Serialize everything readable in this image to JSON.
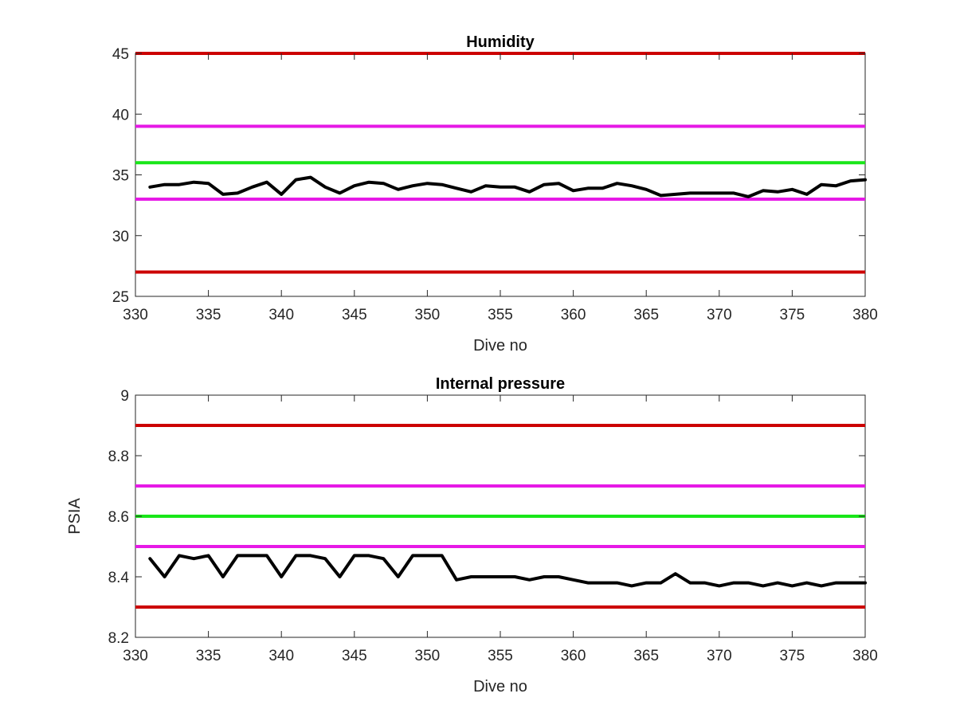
{
  "chart_data": [
    {
      "type": "line",
      "title": "Humidity",
      "xlabel": "Dive no",
      "ylabel": "",
      "xlim": [
        330,
        380
      ],
      "ylim": [
        25,
        45
      ],
      "xticks": [
        330,
        335,
        340,
        345,
        350,
        355,
        360,
        365,
        370,
        375,
        380
      ],
      "yticks": [
        25,
        30,
        35,
        40,
        45
      ],
      "grid": false,
      "legend": "none",
      "thresholds": [
        {
          "value": 45,
          "color": "#cc0000"
        },
        {
          "value": 39,
          "color": "#e619e6"
        },
        {
          "value": 36,
          "color": "#19e619"
        },
        {
          "value": 33,
          "color": "#e619e6"
        },
        {
          "value": 27,
          "color": "#cc0000"
        }
      ],
      "series": [
        {
          "color": "#000000",
          "x": [
            331,
            332,
            333,
            334,
            335,
            336,
            337,
            338,
            339,
            340,
            341,
            342,
            343,
            344,
            345,
            346,
            347,
            348,
            349,
            350,
            351,
            352,
            353,
            354,
            355,
            356,
            357,
            358,
            359,
            360,
            361,
            362,
            363,
            364,
            365,
            366,
            367,
            368,
            369,
            370,
            371,
            372,
            373,
            374,
            375,
            376,
            377,
            378,
            379,
            380
          ],
          "values": [
            34.0,
            34.2,
            34.2,
            34.4,
            34.3,
            33.4,
            33.5,
            34.0,
            34.4,
            33.4,
            34.6,
            34.8,
            34.0,
            33.5,
            34.1,
            34.4,
            34.3,
            33.8,
            34.1,
            34.3,
            34.2,
            33.9,
            33.6,
            34.1,
            34.0,
            34.0,
            33.6,
            34.2,
            34.3,
            33.7,
            33.9,
            33.9,
            34.3,
            34.1,
            33.8,
            33.3,
            33.4,
            33.5,
            33.5,
            33.5,
            33.5,
            33.2,
            33.7,
            33.6,
            33.8,
            33.4,
            34.2,
            34.1,
            34.5,
            34.6
          ]
        }
      ]
    },
    {
      "type": "line",
      "title": "Internal pressure",
      "xlabel": "Dive no",
      "ylabel": "PSIA",
      "xlim": [
        330,
        380
      ],
      "ylim": [
        8.2,
        9
      ],
      "xticks": [
        330,
        335,
        340,
        345,
        350,
        355,
        360,
        365,
        370,
        375,
        380
      ],
      "yticks": [
        8.2,
        8.4,
        8.6,
        8.8,
        9
      ],
      "grid": false,
      "legend": "none",
      "thresholds": [
        {
          "value": 8.9,
          "color": "#cc0000"
        },
        {
          "value": 8.7,
          "color": "#e619e6"
        },
        {
          "value": 8.6,
          "color": "#19e619"
        },
        {
          "value": 8.5,
          "color": "#e619e6"
        },
        {
          "value": 8.3,
          "color": "#cc0000"
        }
      ],
      "series": [
        {
          "color": "#000000",
          "x": [
            331,
            332,
            333,
            334,
            335,
            336,
            337,
            338,
            339,
            340,
            341,
            342,
            343,
            344,
            345,
            346,
            347,
            348,
            349,
            350,
            351,
            352,
            353,
            354,
            355,
            356,
            357,
            358,
            359,
            360,
            361,
            362,
            363,
            364,
            365,
            366,
            367,
            368,
            369,
            370,
            371,
            372,
            373,
            374,
            375,
            376,
            377,
            378,
            379,
            380
          ],
          "values": [
            8.46,
            8.4,
            8.47,
            8.46,
            8.47,
            8.4,
            8.47,
            8.47,
            8.47,
            8.4,
            8.47,
            8.47,
            8.46,
            8.4,
            8.47,
            8.47,
            8.46,
            8.4,
            8.47,
            8.47,
            8.47,
            8.39,
            8.4,
            8.4,
            8.4,
            8.4,
            8.39,
            8.4,
            8.4,
            8.39,
            8.38,
            8.38,
            8.38,
            8.37,
            8.38,
            8.38,
            8.41,
            8.38,
            8.38,
            8.37,
            8.38,
            8.38,
            8.37,
            8.38,
            8.37,
            8.38,
            8.37,
            8.38,
            8.38,
            8.38
          ]
        }
      ]
    }
  ]
}
